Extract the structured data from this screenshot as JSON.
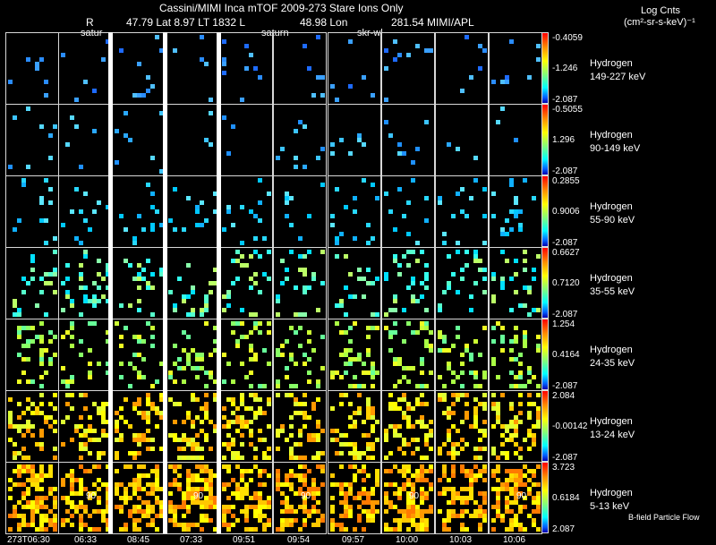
{
  "header": {
    "title": "Cassini/MIMI Inca mTOF  2009-273  Stare   Ions Only",
    "r_label": "R",
    "position_line": "47.79 Lat 8.97 LT 1832 L",
    "lon_line": "48.98 Lon",
    "mimi_line": "281.54  MIMI/APL",
    "units_title": "Log Cnts",
    "units": "(cm²-sr-s-keV)⁻¹"
  },
  "column_annotations": [
    "satur",
    "saturn",
    "skr-wl"
  ],
  "time_labels": [
    "273T06:30",
    "06:33",
    "08:45",
    "07:33",
    "09:51",
    "09:54",
    "09:57",
    "10:00",
    "10:03",
    "10:06"
  ],
  "rows": [
    {
      "species": "Hydrogen",
      "energy": "149-227 keV",
      "cb_top": "-0.4059",
      "cb_mid": "-1.246",
      "cb_bot": "-2.087"
    },
    {
      "species": "Hydrogen",
      "energy": "90-149 keV",
      "cb_top": "-0.5055",
      "cb_mid": "1.296",
      "cb_bot": "-2.087"
    },
    {
      "species": "Hydrogen",
      "energy": "55-90 keV",
      "cb_top": "0.2855",
      "cb_mid": "0.9006",
      "cb_bot": "-2.087"
    },
    {
      "species": "Hydrogen",
      "energy": "35-55 keV",
      "cb_top": "0.6627",
      "cb_mid": "0.7120",
      "cb_bot": "-2.087"
    },
    {
      "species": "Hydrogen",
      "energy": "24-35 keV",
      "cb_top": "1.254",
      "cb_mid": "0.4164",
      "cb_bot": "-2.087"
    },
    {
      "species": "Hydrogen",
      "energy": "13-24 keV",
      "cb_top": "2.084",
      "cb_mid": "-0.00142",
      "cb_bot": "-2.087"
    },
    {
      "species": "Hydrogen",
      "energy": "5-13 keV",
      "cb_top": "3.723",
      "cb_mid": "0.6184",
      "cb_bot": "2.087"
    }
  ],
  "footer_note": "B-field  Particle Flow",
  "cell_marker": "90",
  "colors": {
    "background": "#000000",
    "gap_bars": "#ffffff",
    "row_palettes": [
      [
        "#1e6bff",
        "#2a8cff",
        "#3aa0ff",
        "#4fbfff"
      ],
      [
        "#2aa8ff",
        "#3cc4ff",
        "#55d8ff",
        "#1f90ff"
      ],
      [
        "#00c8ff",
        "#28d8ff",
        "#5ae6ff",
        "#10b0ff"
      ],
      [
        "#55ffcc",
        "#33ffee",
        "#00e0ff",
        "#88ffaa",
        "#bbff66"
      ],
      [
        "#88ff66",
        "#aaff44",
        "#ccff33",
        "#66ff99",
        "#eeff22"
      ],
      [
        "#ffff00",
        "#eeff22",
        "#ddff33",
        "#ffd000",
        "#ff9900"
      ],
      [
        "#ffff00",
        "#ffe000",
        "#ffc800",
        "#ff9900",
        "#ff7a00"
      ]
    ]
  }
}
